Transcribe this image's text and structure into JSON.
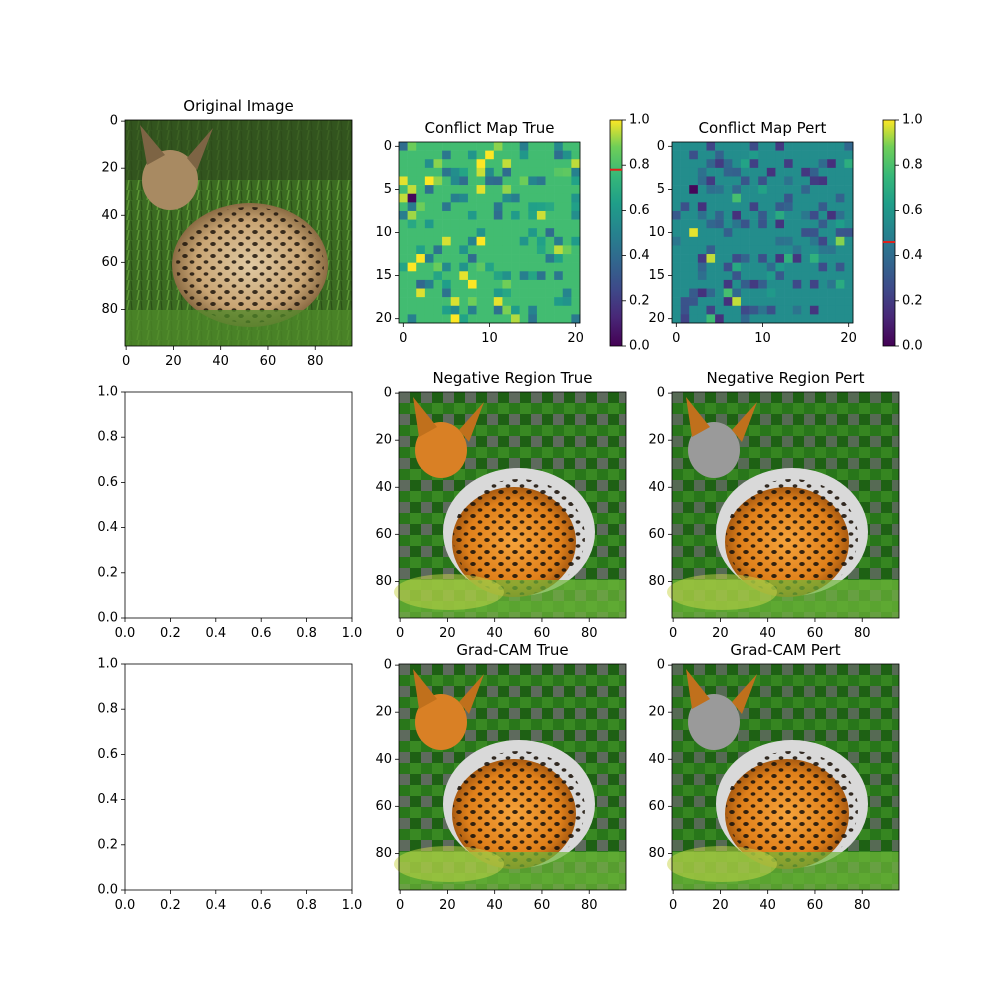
{
  "chart_data": [
    {
      "id": "orig",
      "type": "image",
      "title": "Original Image",
      "image": "photo of a serval crouching in grass",
      "xlim": [
        0,
        96
      ],
      "ylim": [
        96,
        0
      ],
      "xticks": [
        "0",
        "20",
        "40",
        "60",
        "80"
      ],
      "yticks": [
        "0",
        "20",
        "40",
        "60",
        "80"
      ]
    },
    {
      "id": "cmt",
      "type": "heatmap",
      "title": "Conflict Map True",
      "grid": [
        21,
        21
      ],
      "xticks": [
        "0",
        "10",
        "20"
      ],
      "yticks": [
        "0",
        "5",
        "10",
        "15",
        "20"
      ],
      "colorbar": {
        "range": [
          0,
          1
        ],
        "ticks": [
          "0.0",
          "0.2",
          "0.4",
          "0.6",
          "0.8",
          "1.0"
        ],
        "marker": 0.78
      },
      "base_value": 0.78
    },
    {
      "id": "cmp",
      "type": "heatmap",
      "title": "Conflict Map Pert",
      "grid": [
        21,
        21
      ],
      "xticks": [
        "0",
        "10",
        "20"
      ],
      "yticks": [
        "0",
        "5",
        "10",
        "15",
        "20"
      ],
      "colorbar": {
        "range": [
          0,
          1
        ],
        "ticks": [
          "0.0",
          "0.2",
          "0.4",
          "0.6",
          "0.8",
          "1.0"
        ],
        "marker": 0.46
      },
      "base_value": 0.55
    },
    {
      "id": "empty1",
      "type": "empty",
      "xticks": [
        "0.0",
        "0.2",
        "0.4",
        "0.6",
        "0.8",
        "1.0"
      ],
      "yticks": [
        "0.0",
        "0.2",
        "0.4",
        "0.6",
        "0.8",
        "1.0"
      ]
    },
    {
      "id": "nrt",
      "type": "image",
      "title": "Negative Region True",
      "image": "serval photo with orange / green / grey region overlay",
      "xticks": [
        "0",
        "20",
        "40",
        "60",
        "80"
      ],
      "yticks": [
        "0",
        "20",
        "40",
        "60",
        "80"
      ]
    },
    {
      "id": "nrp",
      "type": "image",
      "title": "Negative Region Pert",
      "image": "serval photo with orange / green / grey region overlay",
      "xticks": [
        "0",
        "20",
        "40",
        "60",
        "80"
      ],
      "yticks": [
        "0",
        "20",
        "40",
        "60",
        "80"
      ]
    },
    {
      "id": "empty2",
      "type": "empty",
      "xticks": [
        "0.0",
        "0.2",
        "0.4",
        "0.6",
        "0.8",
        "1.0"
      ],
      "yticks": [
        "0.0",
        "0.2",
        "0.4",
        "0.6",
        "0.8",
        "1.0"
      ]
    },
    {
      "id": "gct",
      "type": "image",
      "title": "Grad-CAM True",
      "image": "serval photo with orange / green / grey region overlay",
      "xticks": [
        "0",
        "20",
        "40",
        "60",
        "80"
      ],
      "yticks": [
        "0",
        "20",
        "40",
        "60",
        "80"
      ]
    },
    {
      "id": "gcp",
      "type": "image",
      "title": "Grad-CAM Pert",
      "image": "serval photo with orange / green / grey region overlay",
      "xticks": [
        "0",
        "20",
        "40",
        "60",
        "80"
      ],
      "yticks": [
        "0",
        "20",
        "40",
        "60",
        "80"
      ]
    }
  ]
}
